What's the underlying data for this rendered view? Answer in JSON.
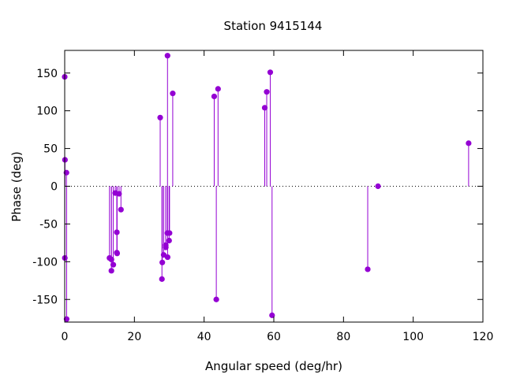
{
  "chart_data": {
    "type": "scatter",
    "style": "impulses-with-points",
    "title": "Station 9415144",
    "xlabel": "Angular speed (deg/hr)",
    "ylabel": "Phase (deg)",
    "xlim": [
      0,
      120
    ],
    "ylim": [
      -180,
      180
    ],
    "xticks": [
      0,
      20,
      40,
      60,
      80,
      100,
      120
    ],
    "yticks": [
      -150,
      -100,
      -50,
      0,
      50,
      100,
      150
    ],
    "grid": false,
    "zero_line": "dotted",
    "color": "#9400d3",
    "points": [
      {
        "x": 0.0,
        "y": 145
      },
      {
        "x": 0.04,
        "y": -95
      },
      {
        "x": 0.08,
        "y": 35
      },
      {
        "x": 0.5,
        "y": 18
      },
      {
        "x": 0.55,
        "y": -176
      },
      {
        "x": 12.85,
        "y": -95
      },
      {
        "x": 13.4,
        "y": -112
      },
      {
        "x": 13.4,
        "y": -97
      },
      {
        "x": 13.94,
        "y": -104
      },
      {
        "x": 14.5,
        "y": -9
      },
      {
        "x": 14.96,
        "y": -61
      },
      {
        "x": 14.96,
        "y": -88
      },
      {
        "x": 15.04,
        "y": -89
      },
      {
        "x": 15.59,
        "y": -10
      },
      {
        "x": 16.14,
        "y": -31
      },
      {
        "x": 27.4,
        "y": 91
      },
      {
        "x": 27.9,
        "y": -123
      },
      {
        "x": 28.0,
        "y": -101
      },
      {
        "x": 28.4,
        "y": -91
      },
      {
        "x": 28.99,
        "y": -78
      },
      {
        "x": 29.0,
        "y": -81
      },
      {
        "x": 29.46,
        "y": -62
      },
      {
        "x": 29.5,
        "y": 173
      },
      {
        "x": 29.53,
        "y": -94
      },
      {
        "x": 29.96,
        "y": -72
      },
      {
        "x": 30.08,
        "y": -62
      },
      {
        "x": 31.0,
        "y": 123
      },
      {
        "x": 42.9,
        "y": 119
      },
      {
        "x": 43.5,
        "y": -150
      },
      {
        "x": 44.0,
        "y": 129
      },
      {
        "x": 57.4,
        "y": 104
      },
      {
        "x": 57.97,
        "y": 125
      },
      {
        "x": 58.98,
        "y": 151
      },
      {
        "x": 59.5,
        "y": -171
      },
      {
        "x": 86.95,
        "y": -110
      },
      {
        "x": 89.9,
        "y": 0
      },
      {
        "x": 115.9,
        "y": 57
      }
    ]
  }
}
